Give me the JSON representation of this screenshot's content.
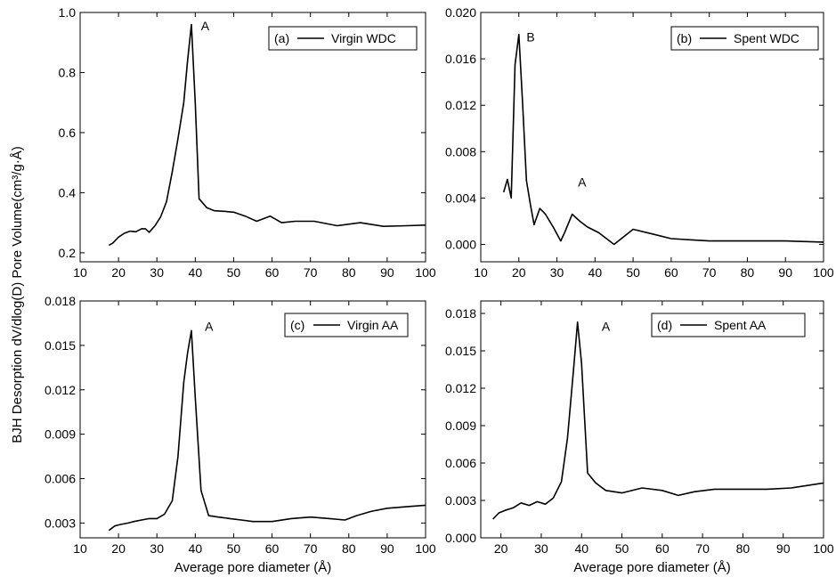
{
  "figure": {
    "ylabel": "BJH Desorption dV/dlog(D) Pore Volume(cm³/g·Å)",
    "xlabel": "Average pore diameter (Å)"
  },
  "chart_data": [
    {
      "type": "line",
      "legend": "(a) — Virgin WDC",
      "legend_panel": "(a)",
      "legend_series": "Virgin WDC",
      "xlim": [
        10,
        100
      ],
      "ylim": [
        0.17,
        1.0
      ],
      "xticks": [
        10,
        20,
        30,
        40,
        50,
        60,
        70,
        80,
        90,
        100
      ],
      "yticks": [
        0.2,
        0.4,
        0.6,
        0.8,
        1.0
      ],
      "ytick_labels": [
        "0.2",
        "0.4",
        "0.6",
        "0.8",
        "1.0"
      ],
      "show_xlabel": false,
      "x": [
        17.5,
        18.5,
        20,
        21.5,
        23,
        24.5,
        26,
        27,
        28,
        29.5,
        31,
        32.5,
        34,
        35.5,
        37,
        38,
        39,
        40,
        41,
        43,
        45,
        47.5,
        50,
        53,
        56,
        59.5,
        62.5,
        66,
        71,
        77,
        83,
        89,
        95,
        100
      ],
      "y": [
        0.225,
        0.232,
        0.252,
        0.265,
        0.272,
        0.27,
        0.28,
        0.28,
        0.268,
        0.29,
        0.32,
        0.37,
        0.47,
        0.58,
        0.7,
        0.84,
        0.96,
        0.7,
        0.38,
        0.35,
        0.34,
        0.338,
        0.335,
        0.322,
        0.305,
        0.322,
        0.3,
        0.305,
        0.305,
        0.29,
        0.3,
        0.288,
        0.29,
        0.292
      ],
      "annotations": [
        {
          "text": "A",
          "x": 41.5,
          "y": 0.94
        }
      ]
    },
    {
      "type": "line",
      "legend": "(b) — Spent WDC",
      "legend_panel": "(b)",
      "legend_series": "Spent WDC",
      "xlim": [
        10,
        100
      ],
      "ylim": [
        -0.0015,
        0.02
      ],
      "xticks": [
        10,
        20,
        30,
        40,
        50,
        60,
        70,
        80,
        90,
        100
      ],
      "yticks": [
        0.0,
        0.004,
        0.008,
        0.012,
        0.016,
        0.02
      ],
      "ytick_labels": [
        "0.000",
        "0.004",
        "0.008",
        "0.012",
        "0.016",
        "0.020"
      ],
      "show_xlabel": false,
      "x": [
        16,
        17,
        18,
        19,
        20,
        21,
        22,
        23,
        24,
        25.5,
        27,
        29,
        31,
        32,
        34,
        36,
        38,
        41,
        45,
        50,
        55,
        60,
        65,
        70,
        80,
        90,
        100
      ],
      "y": [
        0.0045,
        0.0056,
        0.004,
        0.0155,
        0.0181,
        0.012,
        0.0055,
        0.0035,
        0.0017,
        0.0031,
        0.0026,
        0.0015,
        0.0003,
        0.001,
        0.0026,
        0.002,
        0.0015,
        0.001,
        0.0,
        0.0013,
        0.0009,
        0.0005,
        0.0004,
        0.0003,
        0.0003,
        0.0003,
        0.0002
      ],
      "annotations": [
        {
          "text": "B",
          "x": 22,
          "y": 0.0175
        },
        {
          "text": "A",
          "x": 35.5,
          "y": 0.005
        }
      ]
    },
    {
      "type": "line",
      "legend": "(c) — Virgin AA",
      "legend_panel": "(c)",
      "legend_series": "Virgin AA",
      "xlim": [
        10,
        100
      ],
      "ylim": [
        0.002,
        0.018
      ],
      "xticks": [
        10,
        20,
        30,
        40,
        50,
        60,
        70,
        80,
        90,
        100
      ],
      "yticks": [
        0.003,
        0.006,
        0.009,
        0.012,
        0.015,
        0.018
      ],
      "ytick_labels": [
        "0.003",
        "0.006",
        "0.009",
        "0.012",
        "0.015",
        "0.018"
      ],
      "show_xlabel": true,
      "x": [
        17.5,
        19,
        20.5,
        22.5,
        24,
        26,
        28,
        30,
        32,
        34,
        35.5,
        37,
        38,
        39,
        40,
        41.5,
        43.5,
        46,
        49,
        52,
        55,
        60,
        65,
        70,
        75,
        79,
        82,
        86,
        90,
        95,
        100
      ],
      "y": [
        0.0025,
        0.0028,
        0.0029,
        0.003,
        0.0031,
        0.0032,
        0.0033,
        0.0033,
        0.0036,
        0.0045,
        0.0075,
        0.0125,
        0.0145,
        0.016,
        0.0115,
        0.0052,
        0.0035,
        0.0034,
        0.0033,
        0.0032,
        0.0031,
        0.0031,
        0.0033,
        0.0034,
        0.0033,
        0.0032,
        0.0035,
        0.0038,
        0.004,
        0.0041,
        0.0042
      ],
      "annotations": [
        {
          "text": "A",
          "x": 42.5,
          "y": 0.016
        }
      ]
    },
    {
      "type": "line",
      "legend": "(d) — Spent AA",
      "legend_panel": "(d)",
      "legend_series": "Spent AA",
      "xlim": [
        15,
        100
      ],
      "ylim": [
        0.0,
        0.019
      ],
      "xticks": [
        20,
        30,
        40,
        50,
        60,
        70,
        80,
        90,
        100
      ],
      "yticks": [
        0.0,
        0.003,
        0.006,
        0.009,
        0.012,
        0.015,
        0.018
      ],
      "ytick_labels": [
        "0.000",
        "0.003",
        "0.006",
        "0.009",
        "0.012",
        "0.015",
        "0.018"
      ],
      "show_xlabel": true,
      "x": [
        18,
        19.5,
        21,
        23,
        25,
        27,
        29,
        31,
        33,
        35,
        36.5,
        38,
        39,
        40,
        41.5,
        43.5,
        46,
        50,
        55,
        60,
        64,
        68,
        73,
        80,
        86,
        92,
        100
      ],
      "y": [
        0.0015,
        0.002,
        0.0022,
        0.0024,
        0.0028,
        0.0026,
        0.0029,
        0.0027,
        0.0032,
        0.0045,
        0.008,
        0.0135,
        0.0173,
        0.014,
        0.0052,
        0.0044,
        0.0038,
        0.0036,
        0.004,
        0.0038,
        0.0034,
        0.0037,
        0.0039,
        0.0039,
        0.0039,
        0.004,
        0.0044
      ],
      "annotations": [
        {
          "text": "A",
          "x": 45,
          "y": 0.0166
        }
      ]
    }
  ]
}
